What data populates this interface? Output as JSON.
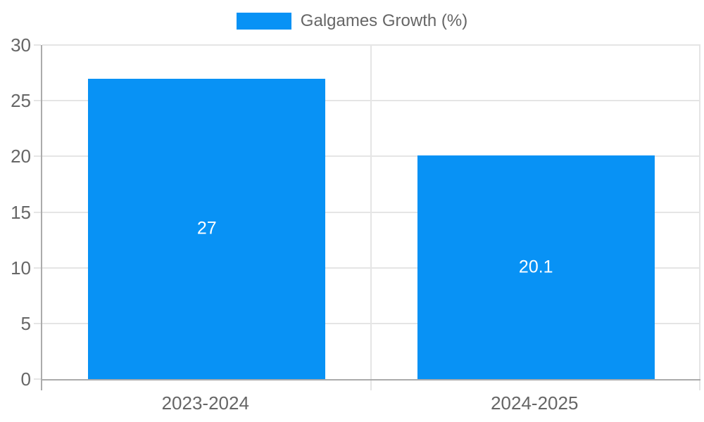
{
  "chart_data": {
    "type": "bar",
    "legend_label": "Galgames Growth (%)",
    "categories": [
      "2023-2024",
      "2024-2025"
    ],
    "series": [
      {
        "name": "Galgames Growth (%)",
        "values": [
          27,
          20.1
        ]
      }
    ],
    "value_labels": [
      "27",
      "20.1"
    ],
    "yticks": [
      0,
      5,
      10,
      15,
      20,
      25,
      30
    ],
    "ylim": [
      0,
      30
    ],
    "xlabel": "",
    "ylabel": "",
    "grid": true,
    "legend_position": "top",
    "colors": {
      "bar": "#0892f5",
      "axis_text": "#666666",
      "value_text": "#ffffff",
      "gridline": "#e5e5e5",
      "axis_line": "#ababab"
    }
  }
}
